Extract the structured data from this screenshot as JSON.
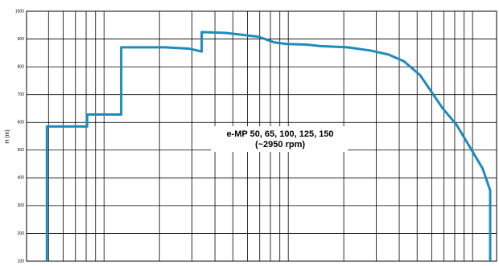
{
  "chart_data": {
    "type": "line",
    "y_label": "H (m)",
    "annotation": [
      "e-MP 50, 65, 100, 125, 150",
      "(~2950 rpm)"
    ],
    "xscale": "log",
    "xlim": [
      0.38,
      135
    ],
    "xticks": [
      0.5,
      0.6,
      0.7,
      0.8,
      0.9,
      1,
      2,
      3,
      4,
      5,
      6,
      7,
      8,
      9,
      10,
      20,
      30,
      40,
      50,
      60,
      70,
      80,
      90,
      100
    ],
    "ylim": [
      100,
      1000
    ],
    "yticks": [
      100,
      200,
      300,
      400,
      500,
      600,
      700,
      800,
      900,
      1000
    ],
    "grid": true,
    "series": [
      {
        "color": "#1f8bbb",
        "x": [
          0.49,
          0.49,
          0.81,
          0.81,
          1.24,
          1.24,
          2.15,
          2.92,
          3.39,
          3.39,
          4.6,
          6.9,
          8.4,
          9.8,
          12.6,
          14.7,
          21,
          28.2,
          35,
          42.4,
          51.9,
          68.9,
          81.7,
          97.9,
          113.5,
          124.6,
          124.6
        ],
        "values": [
          100,
          585,
          585,
          628,
          628,
          870,
          870,
          865,
          855,
          925,
          922,
          908,
          888,
          882,
          880,
          875,
          870,
          858,
          844,
          820,
          770,
          650,
          592,
          505,
          433,
          355,
          100
        ]
      }
    ]
  }
}
